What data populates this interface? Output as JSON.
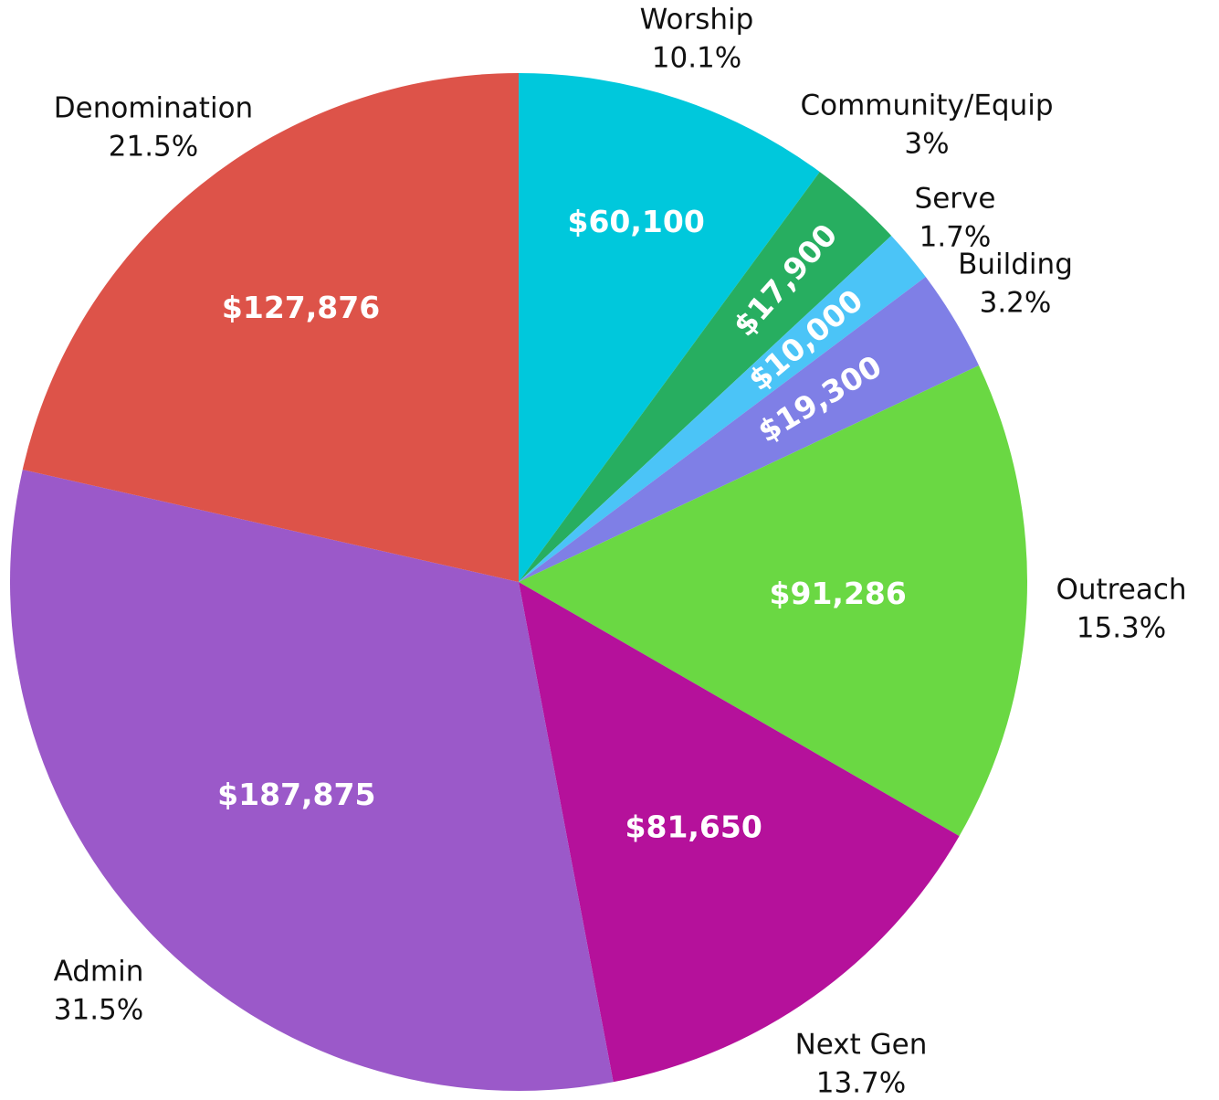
{
  "chart_data": {
    "type": "pie",
    "categories": [
      "Worship",
      "Community/Equip",
      "Serve",
      "Building",
      "Outreach",
      "Next Gen",
      "Admin",
      "Denomination"
    ],
    "values": [
      60100,
      17900,
      10000,
      19300,
      91286,
      81650,
      187875,
      127876
    ],
    "value_labels": [
      "$60,100",
      "$17,900",
      "$10,000",
      "$19,300",
      "$91,286",
      "$81,650",
      "$187,875",
      "$127,876"
    ],
    "percent_labels": [
      "10.1%",
      "3%",
      "1.7%",
      "3.2%",
      "15.3%",
      "13.7%",
      "31.5%",
      "21.5%"
    ],
    "colors": [
      "#00c8dc",
      "#27ae60",
      "#4bc4f7",
      "#7f7fe6",
      "#6ad843",
      "#b5119b",
      "#9b59c9",
      "#dd5349"
    ]
  }
}
